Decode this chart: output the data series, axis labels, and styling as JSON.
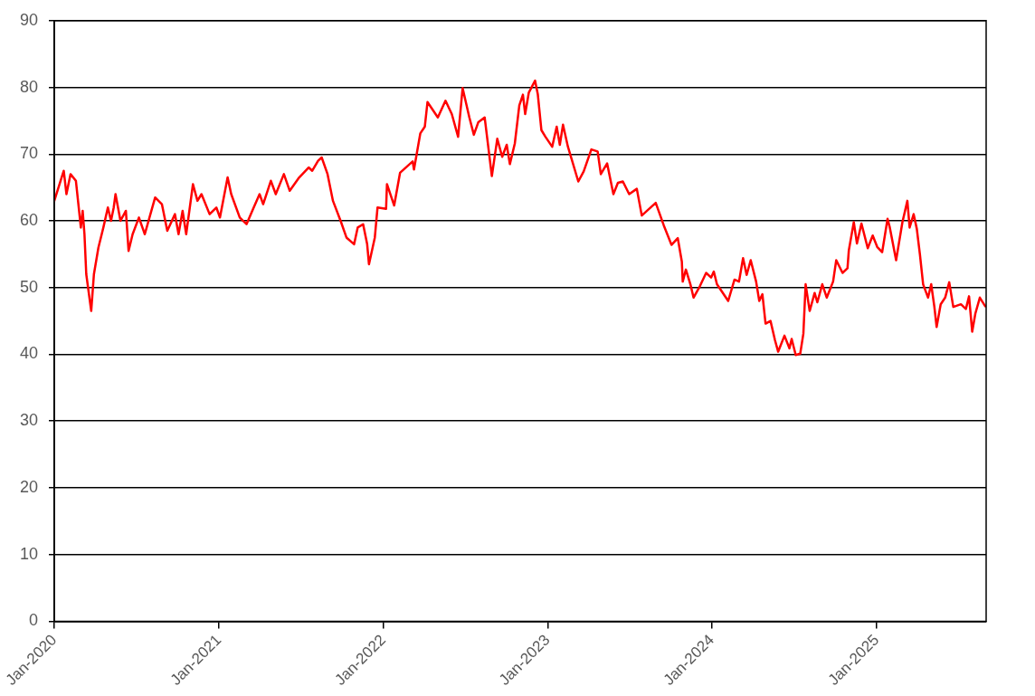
{
  "chart_data": {
    "type": "line",
    "x": [
      "2020-01-01",
      "2020-01-22",
      "2020-01-28",
      "2020-02-06",
      "2020-02-18",
      "2020-02-29",
      "2020-03-04",
      "2020-03-08",
      "2020-03-12",
      "2020-03-18",
      "2020-03-23",
      "2020-03-29",
      "2020-04-08",
      "2020-04-19",
      "2020-04-29",
      "2020-05-06",
      "2020-05-12",
      "2020-05-16",
      "2020-05-27",
      "2020-06-08",
      "2020-06-14",
      "2020-06-23",
      "2020-07-07",
      "2020-07-20",
      "2020-08-12",
      "2020-08-27",
      "2020-09-08",
      "2020-09-25",
      "2020-10-03",
      "2020-10-12",
      "2020-10-20",
      "2020-11-04",
      "2020-11-14",
      "2020-11-23",
      "2020-12-11",
      "2020-12-26",
      "2021-01-03",
      "2021-01-20",
      "2021-01-28",
      "2021-02-16",
      "2021-03-03",
      "2021-03-19",
      "2021-04-01",
      "2021-04-09",
      "2021-04-26",
      "2021-05-07",
      "2021-05-25",
      "2021-06-07",
      "2021-06-28",
      "2021-07-19",
      "2021-07-27",
      "2021-08-09",
      "2021-08-17",
      "2021-08-30",
      "2021-09-11",
      "2021-09-28",
      "2021-10-11",
      "2021-10-28",
      "2021-11-05",
      "2021-11-17",
      "2021-11-26",
      "2021-11-30",
      "2021-12-13",
      "2021-12-19",
      "2022-01-07",
      "2022-01-09",
      "2022-01-25",
      "2022-02-07",
      "2022-03-07",
      "2022-03-10",
      "2022-03-24",
      "2022-04-03",
      "2022-04-09",
      "2022-05-02",
      "2022-05-19",
      "2022-06-02",
      "2022-06-16",
      "2022-06-26",
      "2022-07-11",
      "2022-07-21",
      "2022-07-31",
      "2022-08-14",
      "2022-08-30",
      "2022-09-11",
      "2022-09-22",
      "2022-10-02",
      "2022-10-09",
      "2022-10-20",
      "2022-10-30",
      "2022-11-07",
      "2022-11-12",
      "2022-11-20",
      "2022-12-04",
      "2022-12-10",
      "2022-12-18",
      "2022-12-27",
      "2023-01-11",
      "2023-01-21",
      "2023-01-28",
      "2023-02-04",
      "2023-02-15",
      "2023-03-10",
      "2023-03-22",
      "2023-04-08",
      "2023-04-22",
      "2023-04-29",
      "2023-05-13",
      "2023-05-27",
      "2023-06-06",
      "2023-06-17",
      "2023-07-01",
      "2023-07-18",
      "2023-07-29",
      "2023-08-29",
      "2023-09-16",
      "2023-10-03",
      "2023-10-17",
      "2023-10-26",
      "2023-10-28",
      "2023-11-04",
      "2023-11-14",
      "2023-11-21",
      "2023-12-05",
      "2023-12-19",
      "2023-12-30",
      "2024-01-05",
      "2024-01-12",
      "2024-02-06",
      "2024-02-20",
      "2024-03-01",
      "2024-03-10",
      "2024-03-18",
      "2024-03-27",
      "2024-04-08",
      "2024-04-15",
      "2024-04-22",
      "2024-04-29",
      "2024-05-10",
      "2024-05-20",
      "2024-05-27",
      "2024-06-10",
      "2024-06-21",
      "2024-06-26",
      "2024-07-05",
      "2024-07-15",
      "2024-07-22",
      "2024-07-27",
      "2024-08-05",
      "2024-08-16",
      "2024-08-22",
      "2024-09-02",
      "2024-09-12",
      "2024-09-26",
      "2024-10-03",
      "2024-10-17",
      "2024-10-28",
      "2024-10-31",
      "2024-11-11",
      "2024-11-18",
      "2024-11-28",
      "2024-12-12",
      "2024-12-23",
      "2025-01-02",
      "2025-01-13",
      "2025-01-25",
      "2025-01-30",
      "2025-02-13",
      "2025-02-27",
      "2025-03-10",
      "2025-03-15",
      "2025-03-24",
      "2025-03-31",
      "2025-04-07",
      "2025-04-14",
      "2025-04-25",
      "2025-05-02",
      "2025-05-09",
      "2025-05-14",
      "2025-05-23",
      "2025-06-02",
      "2025-06-11",
      "2025-06-20",
      "2025-07-07",
      "2025-07-18",
      "2025-07-25",
      "2025-08-01",
      "2025-08-08",
      "2025-08-18",
      "2025-08-30"
    ],
    "series": [
      {
        "color": "#ff0000",
        "values": [
          63,
          67.5,
          64,
          67,
          66,
          59,
          61.5,
          58,
          52,
          49,
          46.5,
          52,
          56,
          59,
          62,
          60,
          62,
          64,
          60,
          61.5,
          55.5,
          58,
          60.5,
          58,
          63.5,
          62.5,
          58.5,
          61,
          58,
          61.5,
          58,
          65.5,
          63,
          64,
          61,
          62,
          60.5,
          66.5,
          64,
          60.5,
          59.5,
          62,
          64,
          62.5,
          66,
          64,
          67,
          64.5,
          66.5,
          68,
          67.5,
          69,
          69.5,
          67,
          63,
          60,
          57.5,
          56.5,
          59,
          59.5,
          56.5,
          53.5,
          57.5,
          62,
          61.8,
          65.5,
          62.3,
          67.2,
          68.9,
          67.7,
          73.1,
          74.1,
          77.8,
          75.5,
          78,
          76,
          72.6,
          79.9,
          75.5,
          72.9,
          74.8,
          75.5,
          66.7,
          72.3,
          69.6,
          71.4,
          68.5,
          71.6,
          77.3,
          78.9,
          76,
          79.2,
          81,
          79,
          73.6,
          72.6,
          71.1,
          74.1,
          71.4,
          74.4,
          71.1,
          65.9,
          67.4,
          70.7,
          70.4,
          67,
          68.6,
          64,
          65.7,
          65.9,
          64,
          64.8,
          60.8,
          62.7,
          59.3,
          56.4,
          57.4,
          53.9,
          50.9,
          52.7,
          50.5,
          48.5,
          50.2,
          52.2,
          51.5,
          52.4,
          50.5,
          48,
          51.2,
          50.9,
          54.4,
          51.9,
          54.1,
          50.9,
          48,
          49,
          44.6,
          45,
          42.1,
          40.4,
          42.8,
          40.9,
          42.3,
          39.9,
          40.1,
          43.1,
          50.5,
          46.5,
          49.2,
          47.8,
          50.5,
          48.5,
          50.9,
          54.1,
          52.2,
          52.9,
          55.6,
          59.8,
          56.6,
          59.6,
          55.9,
          57.8,
          56.1,
          55.3,
          60.3,
          59,
          54.1,
          59.8,
          63,
          59,
          61,
          58.8,
          54.9,
          50.5,
          48.5,
          50.5,
          47.1,
          44.1,
          47.5,
          48.5,
          50.8,
          47.1,
          47.5,
          46.8,
          48.7,
          43.4,
          46.1,
          48.5,
          47.2
        ]
      }
    ],
    "xlim": [
      "2020-01-01",
      "2025-09-01"
    ],
    "xticks": [
      {
        "value": "2020-01-01",
        "label": "Jan-2020"
      },
      {
        "value": "2021-01-01",
        "label": "Jan-2021"
      },
      {
        "value": "2022-01-01",
        "label": "Jan-2022"
      },
      {
        "value": "2023-01-01",
        "label": "Jan-2023"
      },
      {
        "value": "2024-01-01",
        "label": "Jan-2024"
      },
      {
        "value": "2025-01-01",
        "label": "Jan-2025"
      }
    ],
    "ylim": [
      0,
      90
    ],
    "yticks": [
      0,
      10,
      20,
      30,
      40,
      50,
      60,
      70,
      80,
      90
    ],
    "grid": "y",
    "legend": false,
    "marker": "none",
    "line_style": "solid"
  }
}
